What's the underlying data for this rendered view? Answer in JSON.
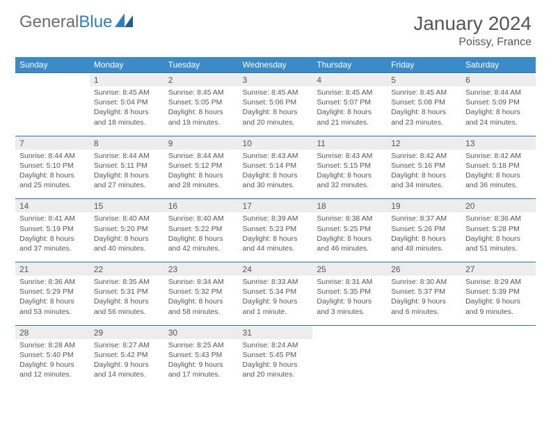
{
  "brand": {
    "part1": "General",
    "part2": "Blue"
  },
  "title": "January 2024",
  "location": "Poissy, France",
  "colors": {
    "header_bg": "#3b8bc9",
    "row_divider": "#2d6fa3",
    "daynum_bg": "#ededed",
    "text": "#555555",
    "brand_grey": "#6b6b6b",
    "brand_blue": "#2d7fbf",
    "page_bg": "#ffffff"
  },
  "typography": {
    "title_fontsize": 28,
    "location_fontsize": 16,
    "dayhead_fontsize": 12,
    "cell_fontsize": 10.5
  },
  "day_headers": [
    "Sunday",
    "Monday",
    "Tuesday",
    "Wednesday",
    "Thursday",
    "Friday",
    "Saturday"
  ],
  "weeks": [
    {
      "nums": [
        "",
        "1",
        "2",
        "3",
        "4",
        "5",
        "6"
      ],
      "cells": [
        null,
        {
          "sr": "Sunrise: 8:45 AM",
          "ss": "Sunset: 5:04 PM",
          "d1": "Daylight: 8 hours",
          "d2": "and 18 minutes."
        },
        {
          "sr": "Sunrise: 8:45 AM",
          "ss": "Sunset: 5:05 PM",
          "d1": "Daylight: 8 hours",
          "d2": "and 19 minutes."
        },
        {
          "sr": "Sunrise: 8:45 AM",
          "ss": "Sunset: 5:06 PM",
          "d1": "Daylight: 8 hours",
          "d2": "and 20 minutes."
        },
        {
          "sr": "Sunrise: 8:45 AM",
          "ss": "Sunset: 5:07 PM",
          "d1": "Daylight: 8 hours",
          "d2": "and 21 minutes."
        },
        {
          "sr": "Sunrise: 8:45 AM",
          "ss": "Sunset: 5:08 PM",
          "d1": "Daylight: 8 hours",
          "d2": "and 23 minutes."
        },
        {
          "sr": "Sunrise: 8:44 AM",
          "ss": "Sunset: 5:09 PM",
          "d1": "Daylight: 8 hours",
          "d2": "and 24 minutes."
        }
      ]
    },
    {
      "nums": [
        "7",
        "8",
        "9",
        "10",
        "11",
        "12",
        "13"
      ],
      "cells": [
        {
          "sr": "Sunrise: 8:44 AM",
          "ss": "Sunset: 5:10 PM",
          "d1": "Daylight: 8 hours",
          "d2": "and 25 minutes."
        },
        {
          "sr": "Sunrise: 8:44 AM",
          "ss": "Sunset: 5:11 PM",
          "d1": "Daylight: 8 hours",
          "d2": "and 27 minutes."
        },
        {
          "sr": "Sunrise: 8:44 AM",
          "ss": "Sunset: 5:12 PM",
          "d1": "Daylight: 8 hours",
          "d2": "and 28 minutes."
        },
        {
          "sr": "Sunrise: 8:43 AM",
          "ss": "Sunset: 5:14 PM",
          "d1": "Daylight: 8 hours",
          "d2": "and 30 minutes."
        },
        {
          "sr": "Sunrise: 8:43 AM",
          "ss": "Sunset: 5:15 PM",
          "d1": "Daylight: 8 hours",
          "d2": "and 32 minutes."
        },
        {
          "sr": "Sunrise: 8:42 AM",
          "ss": "Sunset: 5:16 PM",
          "d1": "Daylight: 8 hours",
          "d2": "and 34 minutes."
        },
        {
          "sr": "Sunrise: 8:42 AM",
          "ss": "Sunset: 5:18 PM",
          "d1": "Daylight: 8 hours",
          "d2": "and 36 minutes."
        }
      ]
    },
    {
      "nums": [
        "14",
        "15",
        "16",
        "17",
        "18",
        "19",
        "20"
      ],
      "cells": [
        {
          "sr": "Sunrise: 8:41 AM",
          "ss": "Sunset: 5:19 PM",
          "d1": "Daylight: 8 hours",
          "d2": "and 37 minutes."
        },
        {
          "sr": "Sunrise: 8:40 AM",
          "ss": "Sunset: 5:20 PM",
          "d1": "Daylight: 8 hours",
          "d2": "and 40 minutes."
        },
        {
          "sr": "Sunrise: 8:40 AM",
          "ss": "Sunset: 5:22 PM",
          "d1": "Daylight: 8 hours",
          "d2": "and 42 minutes."
        },
        {
          "sr": "Sunrise: 8:39 AM",
          "ss": "Sunset: 5:23 PM",
          "d1": "Daylight: 8 hours",
          "d2": "and 44 minutes."
        },
        {
          "sr": "Sunrise: 8:38 AM",
          "ss": "Sunset: 5:25 PM",
          "d1": "Daylight: 8 hours",
          "d2": "and 46 minutes."
        },
        {
          "sr": "Sunrise: 8:37 AM",
          "ss": "Sunset: 5:26 PM",
          "d1": "Daylight: 8 hours",
          "d2": "and 48 minutes."
        },
        {
          "sr": "Sunrise: 8:36 AM",
          "ss": "Sunset: 5:28 PM",
          "d1": "Daylight: 8 hours",
          "d2": "and 51 minutes."
        }
      ]
    },
    {
      "nums": [
        "21",
        "22",
        "23",
        "24",
        "25",
        "26",
        "27"
      ],
      "cells": [
        {
          "sr": "Sunrise: 8:36 AM",
          "ss": "Sunset: 5:29 PM",
          "d1": "Daylight: 8 hours",
          "d2": "and 53 minutes."
        },
        {
          "sr": "Sunrise: 8:35 AM",
          "ss": "Sunset: 5:31 PM",
          "d1": "Daylight: 8 hours",
          "d2": "and 56 minutes."
        },
        {
          "sr": "Sunrise: 8:34 AM",
          "ss": "Sunset: 5:32 PM",
          "d1": "Daylight: 8 hours",
          "d2": "and 58 minutes."
        },
        {
          "sr": "Sunrise: 8:33 AM",
          "ss": "Sunset: 5:34 PM",
          "d1": "Daylight: 9 hours",
          "d2": "and 1 minute."
        },
        {
          "sr": "Sunrise: 8:31 AM",
          "ss": "Sunset: 5:35 PM",
          "d1": "Daylight: 9 hours",
          "d2": "and 3 minutes."
        },
        {
          "sr": "Sunrise: 8:30 AM",
          "ss": "Sunset: 5:37 PM",
          "d1": "Daylight: 9 hours",
          "d2": "and 6 minutes."
        },
        {
          "sr": "Sunrise: 8:29 AM",
          "ss": "Sunset: 5:39 PM",
          "d1": "Daylight: 9 hours",
          "d2": "and 9 minutes."
        }
      ]
    },
    {
      "nums": [
        "28",
        "29",
        "30",
        "31",
        "",
        "",
        ""
      ],
      "cells": [
        {
          "sr": "Sunrise: 8:28 AM",
          "ss": "Sunset: 5:40 PM",
          "d1": "Daylight: 9 hours",
          "d2": "and 12 minutes."
        },
        {
          "sr": "Sunrise: 8:27 AM",
          "ss": "Sunset: 5:42 PM",
          "d1": "Daylight: 9 hours",
          "d2": "and 14 minutes."
        },
        {
          "sr": "Sunrise: 8:25 AM",
          "ss": "Sunset: 5:43 PM",
          "d1": "Daylight: 9 hours",
          "d2": "and 17 minutes."
        },
        {
          "sr": "Sunrise: 8:24 AM",
          "ss": "Sunset: 5:45 PM",
          "d1": "Daylight: 9 hours",
          "d2": "and 20 minutes."
        },
        null,
        null,
        null
      ]
    }
  ]
}
